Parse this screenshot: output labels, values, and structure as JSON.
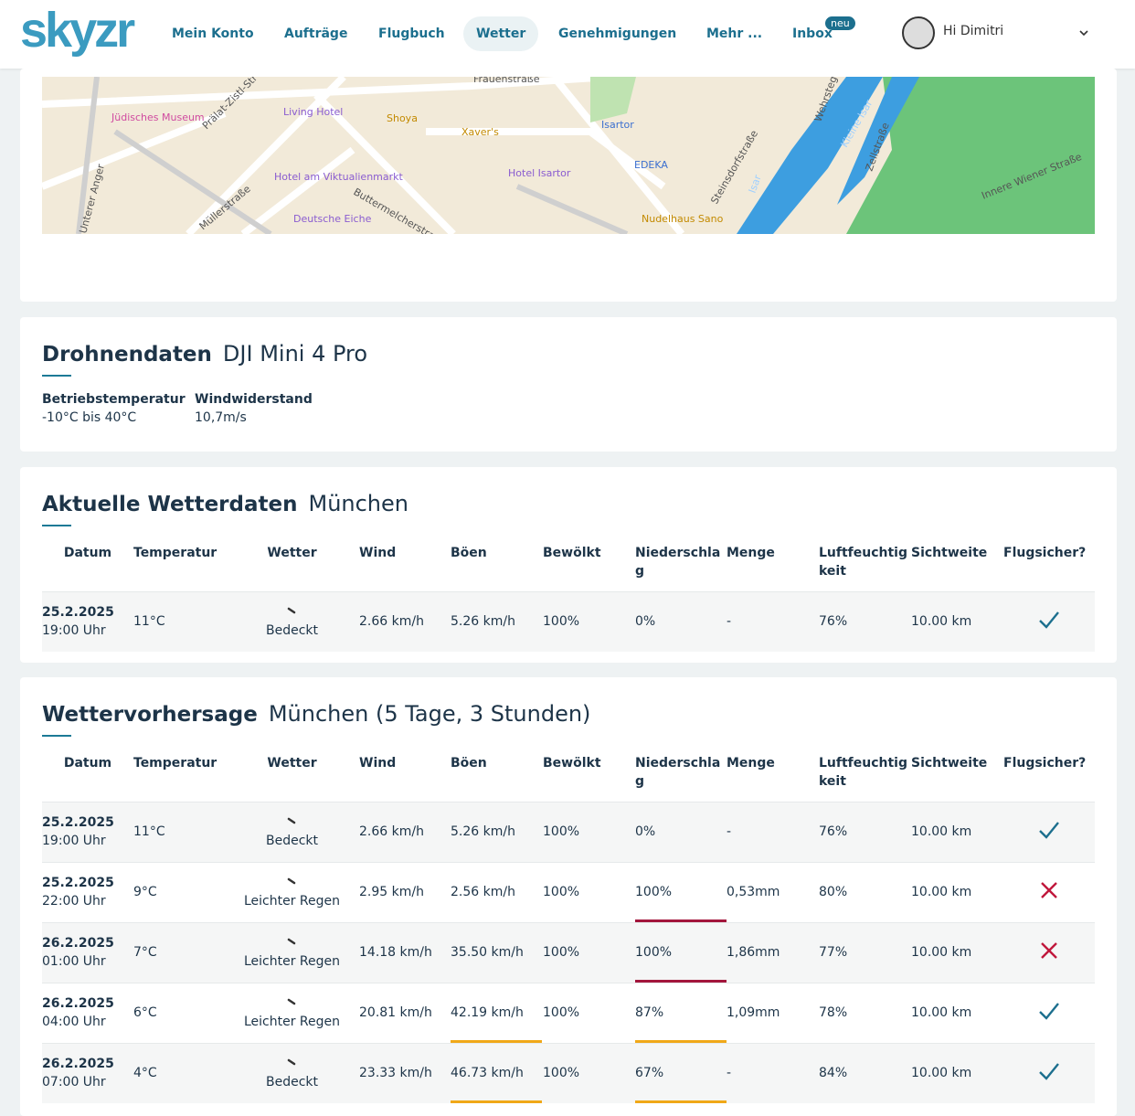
{
  "nav": {
    "logo": "skyzr",
    "items": [
      "Mein Konto",
      "Aufträge",
      "Flugbuch",
      "Wetter",
      "Genehmigungen",
      "Mehr ...",
      "Inbox"
    ],
    "active": 3,
    "badge": "neu",
    "greeting": "Hi Dimitri"
  },
  "map": {
    "labels": [
      "Frauenstraße",
      "Jüdisches Museum",
      "Prälat-Zistl-Str",
      "Living Hotel",
      "Shoya",
      "Xaver's",
      "Isartor",
      "Hotel am Viktualienmarkt",
      "Hotel Isartor",
      "EDEKA",
      "Müllerstraße",
      "Deutsche Eiche",
      "Buttermelcherstraße",
      "Unterer Anger",
      "Nudelhaus Sano",
      "Steinsdorfstraße",
      "Isar",
      "Kleine Isar",
      "Wehrsteg",
      "Zellstraße",
      "Innere Wiener Straße"
    ]
  },
  "drone": {
    "title": "Drohnendaten",
    "subtitle": "DJI Mini 4 Pro",
    "specs": [
      {
        "label": "Betriebstemperatur",
        "value": "-10°C bis 40°C"
      },
      {
        "label": "Windwiderstand",
        "value": "10,7m/s"
      }
    ]
  },
  "current": {
    "title": "Aktuelle Wetterdaten",
    "subtitle": "München",
    "columns": [
      "Datum",
      "Temperatur",
      "Wetter",
      "Wind",
      "Böen",
      "Bewölkt",
      "Niederschlag",
      "Menge",
      "Luftfeuchtigkeit",
      "Sichtweite",
      "Flugsicher?"
    ],
    "rows": [
      {
        "date": "25.2.2025",
        "time": "19:00 Uhr",
        "temperature": "11°C",
        "weather": "Bedeckt",
        "wind": "2.66 km/h",
        "gusts": "5.26 km/h",
        "cloud": "100%",
        "precipitation": "0%",
        "amount": "-",
        "humidity": "76%",
        "visibility": "10.00 km",
        "safe": true
      }
    ]
  },
  "forecast": {
    "title": "Wettervorhersage",
    "subtitle": "München (5 Tage, 3 Stunden)",
    "columns": [
      "Datum",
      "Temperatur",
      "Wetter",
      "Wind",
      "Böen",
      "Bewölkt",
      "Niederschlag",
      "Menge",
      "Luftfeuchtigkeit",
      "Sichtweite",
      "Flugsicher?"
    ],
    "rows": [
      {
        "date": "25.2.2025",
        "time": "19:00 Uhr",
        "temperature": "11°C",
        "weather": "Bedeckt",
        "wind": "2.66 km/h",
        "gusts": "5.26 km/h",
        "cloud": "100%",
        "precipitation": "0%",
        "amount": "-",
        "humidity": "76%",
        "visibility": "10.00 km",
        "safe": true
      },
      {
        "date": "25.2.2025",
        "time": "22:00 Uhr",
        "temperature": "9°C",
        "weather": "Leichter Regen",
        "wind": "2.95 km/h",
        "gusts": "2.56 km/h",
        "cloud": "100%",
        "precipitation": "100%",
        "precipitation_alert": "#a3163c",
        "amount": "0,53mm",
        "humidity": "80%",
        "visibility": "10.00 km",
        "safe": false
      },
      {
        "date": "26.2.2025",
        "time": "01:00 Uhr",
        "temperature": "7°C",
        "weather": "Leichter Regen",
        "wind": "14.18 km/h",
        "gusts": "35.50 km/h",
        "cloud": "100%",
        "precipitation": "100%",
        "precipitation_alert": "#a3163c",
        "amount": "1,86mm",
        "humidity": "77%",
        "visibility": "10.00 km",
        "safe": false
      },
      {
        "date": "26.2.2025",
        "time": "04:00 Uhr",
        "temperature": "6°C",
        "weather": "Leichter Regen",
        "wind": "20.81 km/h",
        "gusts": "42.19 km/h",
        "gusts_alert": "#f0a818",
        "cloud": "100%",
        "precipitation": "87%",
        "precipitation_alert": "#f0a818",
        "amount": "1,09mm",
        "humidity": "78%",
        "visibility": "10.00 km",
        "safe": true
      },
      {
        "date": "26.2.2025",
        "time": "07:00 Uhr",
        "temperature": "4°C",
        "weather": "Bedeckt",
        "wind": "23.33 km/h",
        "gusts": "46.73 km/h",
        "gusts_alert": "#f0a818",
        "cloud": "100%",
        "precipitation": "67%",
        "precipitation_alert": "#f0a818",
        "amount": "-",
        "humidity": "84%",
        "visibility": "10.00 km",
        "safe": true
      }
    ]
  }
}
